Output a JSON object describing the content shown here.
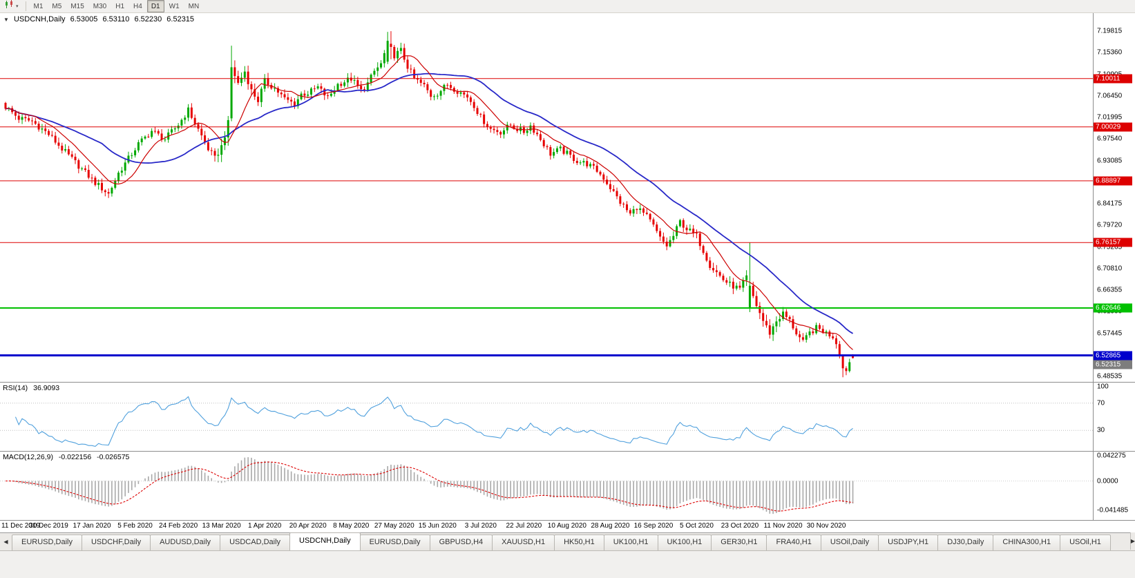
{
  "toolbar": {
    "timeframes": [
      "M1",
      "M5",
      "M15",
      "M30",
      "H1",
      "H4",
      "D1",
      "W1",
      "MN"
    ],
    "active_timeframe": "D1"
  },
  "icons": {
    "dropdown": "▾",
    "symbol_caret": "▼",
    "scroll_left": "◀",
    "scroll_right": "▶"
  },
  "header": {
    "symbol": "USDCNH,Daily",
    "open": "6.53005",
    "high": "6.53110",
    "low": "6.52230",
    "close": "6.52315"
  },
  "rsi_panel": {
    "title": "RSI(14)",
    "value": "36.9093",
    "levels": [
      {
        "label": "100",
        "value": 100
      },
      {
        "label": "70",
        "value": 70
      },
      {
        "label": "30",
        "value": 30
      }
    ],
    "line_color": "#4fa0dd"
  },
  "macd_panel": {
    "title": "MACD(12,26,9)",
    "main_value": "-0.022156",
    "signal_value": "-0.026575",
    "axis_labels": [
      {
        "label": "0.042275",
        "value": 0.042275
      },
      {
        "label": "0.0000",
        "value": 0
      },
      {
        "label": "-0.041485",
        "value": -0.041485
      }
    ],
    "hist_color": "#a8a8a8",
    "signal_color": "#dd0000"
  },
  "tabs": {
    "items": [
      "EURUSD,Daily",
      "USDCHF,Daily",
      "AUDUSD,Daily",
      "USDCAD,Daily",
      "USDCNH,Daily",
      "EURUSD,Daily",
      "GBPUSD,H4",
      "XAUUSD,H1",
      "HK50,H1",
      "UK100,H1",
      "UK100,H1",
      "GER30,H1",
      "FRA40,H1",
      "USOil,Daily",
      "USDJPY,H1",
      "DJ30,Daily",
      "CHINA300,H1",
      "USOil,H1"
    ],
    "active_index": 4
  },
  "chart_data": {
    "type": "candlestick",
    "symbol": "USDCNH",
    "timeframe": "Daily",
    "candle_count": 256,
    "price_range": [
      6.48535,
      7.19815
    ],
    "y_ticks": [
      "7.19815",
      "7.15360",
      "7.10905",
      "7.06450",
      "7.01995",
      "6.97540",
      "6.93085",
      "6.88630",
      "6.84175",
      "6.79720",
      "6.75265",
      "6.70810",
      "6.66355",
      "6.61900",
      "6.57445",
      "6.52990",
      "6.48535"
    ],
    "x_labels": [
      "11 Dec 2019",
      "30 Dec 2019",
      "17 Jan 2020",
      "5 Feb 2020",
      "24 Feb 2020",
      "13 Mar 2020",
      "1 Apr 2020",
      "20 Apr 2020",
      "8 May 2020",
      "27 May 2020",
      "15 Jun 2020",
      "3 Jul 2020",
      "22 Jul 2020",
      "10 Aug 2020",
      "28 Aug 2020",
      "16 Sep 2020",
      "5 Oct 2020",
      "23 Oct 2020",
      "11 Nov 2020",
      "30 Nov 2020"
    ],
    "levels": [
      {
        "price": 7.10011,
        "label": "7.10011",
        "color": "#dd0000",
        "width": 1
      },
      {
        "price": 7.00029,
        "label": "7.00029",
        "color": "#dd0000",
        "width": 1
      },
      {
        "price": 6.88897,
        "label": "6.88897",
        "color": "#dd0000",
        "width": 1
      },
      {
        "price": 6.76157,
        "label": "6.76157",
        "color": "#dd0000",
        "width": 1
      },
      {
        "price": 6.62646,
        "label": "6.62646",
        "color": "#00c000",
        "width": 2
      },
      {
        "price": 6.52865,
        "label": "6.52865",
        "color": "#0000cc",
        "width": 3
      }
    ],
    "bid_marker": {
      "label": "6.52315",
      "price": 6.52315,
      "color": "#7d7d7d"
    },
    "up_color": "#00a800",
    "down_color": "#e60000",
    "ma_fast": {
      "period": 10,
      "color": "#cc0000"
    },
    "ma_slow": {
      "period": 30,
      "color": "#2828c8"
    },
    "noise": 0.013,
    "close_waypoints": [
      [
        0,
        7.042
      ],
      [
        4,
        7.018
      ],
      [
        8,
        7.012
      ],
      [
        13,
        6.985
      ],
      [
        17,
        6.955
      ],
      [
        22,
        6.92
      ],
      [
        27,
        6.885
      ],
      [
        31,
        6.862
      ],
      [
        34,
        6.905
      ],
      [
        37,
        6.935
      ],
      [
        40,
        6.965
      ],
      [
        44,
        6.992
      ],
      [
        48,
        6.975
      ],
      [
        52,
        7.005
      ],
      [
        55,
        7.035
      ],
      [
        58,
        6.995
      ],
      [
        61,
        6.955
      ],
      [
        63,
        6.935
      ],
      [
        65,
        6.96
      ],
      [
        67,
        7.008
      ],
      [
        68,
        7.123
      ],
      [
        70,
        7.09
      ],
      [
        72,
        7.115
      ],
      [
        74,
        7.075
      ],
      [
        76,
        7.055
      ],
      [
        78,
        7.095
      ],
      [
        81,
        7.08
      ],
      [
        84,
        7.058
      ],
      [
        87,
        7.048
      ],
      [
        89,
        7.068
      ],
      [
        91,
        7.07
      ],
      [
        94,
        7.082
      ],
      [
        97,
        7.06
      ],
      [
        100,
        7.088
      ],
      [
        102,
        7.094
      ],
      [
        104,
        7.1
      ],
      [
        107,
        7.075
      ],
      [
        109,
        7.09
      ],
      [
        111,
        7.115
      ],
      [
        113,
        7.13
      ],
      [
        115,
        7.172
      ],
      [
        117,
        7.148
      ],
      [
        119,
        7.158
      ],
      [
        121,
        7.125
      ],
      [
        123,
        7.1
      ],
      [
        126,
        7.085
      ],
      [
        128,
        7.065
      ],
      [
        130,
        7.07
      ],
      [
        133,
        7.088
      ],
      [
        136,
        7.075
      ],
      [
        139,
        7.063
      ],
      [
        141,
        7.045
      ],
      [
        143,
        7.02
      ],
      [
        146,
        6.996
      ],
      [
        149,
        6.99
      ],
      [
        152,
        7.004
      ],
      [
        154,
        6.996
      ],
      [
        156,
        6.99
      ],
      [
        158,
        7.003
      ],
      [
        160,
        6.985
      ],
      [
        162,
        6.965
      ],
      [
        164,
        6.945
      ],
      [
        167,
        6.954
      ],
      [
        169,
        6.945
      ],
      [
        172,
        6.93
      ],
      [
        175,
        6.924
      ],
      [
        178,
        6.91
      ],
      [
        180,
        6.895
      ],
      [
        182,
        6.875
      ],
      [
        185,
        6.845
      ],
      [
        188,
        6.82
      ],
      [
        190,
        6.835
      ],
      [
        193,
        6.815
      ],
      [
        195,
        6.795
      ],
      [
        197,
        6.77
      ],
      [
        199,
        6.755
      ],
      [
        201,
        6.775
      ],
      [
        203,
        6.805
      ],
      [
        205,
        6.79
      ],
      [
        208,
        6.775
      ],
      [
        210,
        6.745
      ],
      [
        212,
        6.715
      ],
      [
        214,
        6.7
      ],
      [
        216,
        6.685
      ],
      [
        218,
        6.675
      ],
      [
        221,
        6.665
      ],
      [
        223,
        6.69
      ],
      [
        224,
        6.668
      ],
      [
        226,
        6.632
      ],
      [
        228,
        6.6
      ],
      [
        230,
        6.575
      ],
      [
        232,
        6.6
      ],
      [
        234,
        6.615
      ],
      [
        236,
        6.6
      ],
      [
        238,
        6.575
      ],
      [
        240,
        6.555
      ],
      [
        242,
        6.575
      ],
      [
        244,
        6.585
      ],
      [
        246,
        6.58
      ],
      [
        247,
        6.575
      ],
      [
        249,
        6.568
      ],
      [
        250,
        6.555
      ],
      [
        251,
        6.535
      ],
      [
        252,
        6.502
      ],
      [
        253,
        6.5
      ],
      [
        254,
        6.515
      ],
      [
        255,
        6.52315
      ]
    ],
    "vol_waypoints": [
      [
        0,
        1
      ],
      [
        25,
        1.3
      ],
      [
        40,
        1
      ],
      [
        62,
        1.1
      ],
      [
        66,
        2.3
      ],
      [
        72,
        1.5
      ],
      [
        90,
        1
      ],
      [
        110,
        1.2
      ],
      [
        116,
        1.7
      ],
      [
        124,
        1
      ],
      [
        170,
        0.9
      ],
      [
        200,
        1.1
      ],
      [
        222,
        1.3
      ],
      [
        230,
        1.5
      ],
      [
        244,
        1
      ],
      [
        252,
        1.3
      ],
      [
        255,
        0.6
      ]
    ],
    "overrides": [
      {
        "i": 68,
        "o": 7.018,
        "h": 7.168,
        "l": 7.012
      },
      {
        "i": 115,
        "o": 7.135,
        "h": 7.1965,
        "l": 7.13
      },
      {
        "i": 116,
        "o": 7.172,
        "h": 7.198,
        "l": 7.14
      },
      {
        "i": 224,
        "o": 6.628,
        "h": 6.7615,
        "l": 6.618
      },
      {
        "i": 252,
        "o": 6.527,
        "h": 6.53,
        "l": 6.4835,
        "c": 6.502
      },
      {
        "i": 255,
        "o": 6.53005,
        "h": 6.5311,
        "l": 6.5223,
        "c": 6.52315
      }
    ]
  }
}
